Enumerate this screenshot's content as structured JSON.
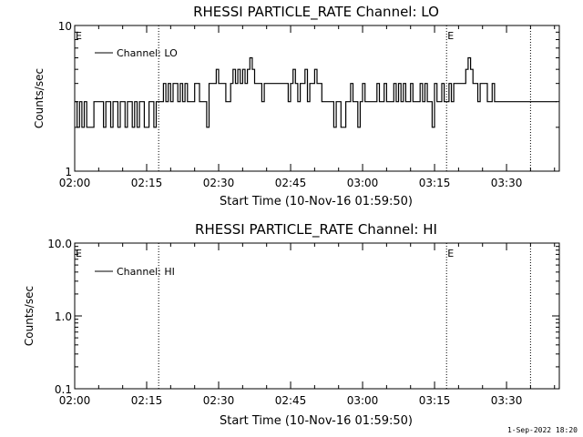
{
  "footer_timestamp": "1-Sep-2022 18:20",
  "chart_data": [
    {
      "type": "line",
      "title": "RHESSI PARTICLE_RATE Channel: LO",
      "xlabel": "Start Time (10-Nov-16 01:59:50)",
      "ylabel": "Counts/sec",
      "yscale": "log",
      "ylim": [
        1,
        10
      ],
      "ytick_labels": [
        "1",
        "10"
      ],
      "xlim_minutes": [
        0,
        101
      ],
      "xtick_labels": [
        "02:00",
        "02:15",
        "02:30",
        "02:45",
        "03:00",
        "03:15",
        "03:30"
      ],
      "legend": {
        "placement": "top-left",
        "label": "Channel: LO"
      },
      "vlines_time": [
        "02:17.5",
        "03:17.5",
        "03:35"
      ],
      "markers": [
        {
          "label": "E",
          "time": "02:00"
        },
        {
          "label": "E",
          "time": "03:17.5"
        }
      ],
      "series": [
        {
          "name": "Channel: LO",
          "x_minutes": [
            0,
            0.5,
            1,
            1.5,
            2,
            2.5,
            3,
            3.5,
            4,
            4.5,
            5,
            5.5,
            6,
            6.5,
            7,
            7.5,
            8,
            8.5,
            9,
            9.5,
            10,
            10.5,
            11,
            11.5,
            12,
            12.5,
            13,
            13.5,
            14,
            14.5,
            15,
            15.5,
            16,
            16.5,
            17,
            17.5,
            18,
            18.5,
            19,
            19.5,
            20,
            20.5,
            21,
            21.5,
            22,
            22.5,
            23,
            23.5,
            24,
            24.5,
            25,
            25.5,
            26,
            26.5,
            27,
            27.5,
            28,
            28.5,
            29,
            29.5,
            30,
            30.5,
            31,
            31.5,
            32,
            32.5,
            33,
            33.5,
            34,
            34.5,
            35,
            35.5,
            36,
            36.5,
            37,
            37.5,
            38,
            38.5,
            39,
            39.5,
            40,
            40.5,
            41,
            41.5,
            42,
            42.5,
            43,
            43.5,
            44,
            44.5,
            45,
            45.5,
            46,
            46.5,
            47,
            47.5,
            48,
            48.5,
            49,
            49.5,
            50,
            50.5,
            51,
            51.5,
            52,
            52.5,
            53,
            53.5,
            54,
            54.5,
            55,
            55.5,
            56,
            56.5,
            57,
            57.5,
            58,
            58.5,
            59,
            59.5,
            60,
            60.5,
            61,
            61.5,
            62,
            62.5,
            63,
            63.5,
            64,
            64.5,
            65,
            65.5,
            66,
            66.5,
            67,
            67.5,
            68,
            68.5,
            69,
            69.5,
            70,
            70.5,
            71,
            71.5,
            72,
            72.5,
            73,
            73.5,
            74,
            74.5,
            75,
            75.5,
            76,
            76.5,
            77,
            77.5,
            78,
            78.5,
            79,
            79.5,
            80,
            80.5,
            81,
            81.5,
            82,
            82.5,
            83,
            83.5,
            84,
            84.5,
            85,
            85.5,
            86,
            86.5,
            87,
            87.5,
            88,
            88.5,
            89,
            89.5,
            90,
            90.5,
            91,
            91.5,
            92,
            92.5,
            93,
            93.5,
            94,
            94.5,
            95,
            95.5,
            96,
            96.5,
            97,
            97.5,
            98,
            98.5,
            99,
            99.5,
            100
          ],
          "values": [
            3,
            2,
            3,
            2,
            3,
            2,
            2,
            2,
            3,
            3,
            3,
            3,
            2,
            3,
            3,
            2,
            3,
            3,
            2,
            3,
            3,
            2,
            3,
            3,
            2,
            3,
            2,
            3,
            3,
            2,
            2,
            3,
            3,
            2,
            3,
            3,
            3,
            4,
            3,
            4,
            3,
            4,
            4,
            3,
            4,
            3,
            4,
            3,
            3,
            3,
            4,
            4,
            3,
            3,
            3,
            2,
            4,
            4,
            4,
            5,
            4,
            4,
            4,
            3,
            3,
            4,
            5,
            4,
            5,
            4,
            5,
            4,
            5,
            6,
            5,
            4,
            4,
            4,
            3,
            4,
            4,
            4,
            4,
            4,
            4,
            4,
            4,
            4,
            4,
            3,
            4,
            5,
            4,
            3,
            4,
            4,
            5,
            3,
            4,
            4,
            5,
            4,
            4,
            3,
            3,
            3,
            3,
            3,
            2,
            3,
            3,
            2,
            2,
            3,
            3,
            4,
            3,
            3,
            2,
            3,
            4,
            3,
            3,
            3,
            3,
            3,
            4,
            3,
            3,
            4,
            3,
            3,
            3,
            4,
            3,
            4,
            3,
            4,
            3,
            3,
            4,
            3,
            3,
            3,
            4,
            3,
            4,
            3,
            3,
            2,
            4,
            3,
            3,
            4,
            3,
            3,
            4,
            3,
            4,
            4,
            4,
            4,
            4,
            5,
            6,
            5,
            4,
            4,
            3,
            4,
            4,
            4,
            3,
            3,
            4,
            3,
            3,
            3,
            3,
            3,
            3,
            3,
            3,
            3,
            3,
            3,
            3,
            3,
            3,
            3,
            3,
            3,
            3,
            3,
            3,
            3,
            3,
            3,
            3,
            3,
            3
          ]
        }
      ]
    },
    {
      "type": "line",
      "title": "RHESSI PARTICLE_RATE Channel: HI",
      "xlabel": "Start Time (10-Nov-16 01:59:50)",
      "ylabel": "Counts/sec",
      "yscale": "log",
      "ylim": [
        0.1,
        10
      ],
      "ytick_labels": [
        "0.1",
        "1.0",
        "10.0"
      ],
      "xlim_minutes": [
        0,
        101
      ],
      "xtick_labels": [
        "02:00",
        "02:15",
        "02:30",
        "02:45",
        "03:00",
        "03:15",
        "03:30"
      ],
      "legend": {
        "placement": "top-left",
        "label": "Channel: HI"
      },
      "vlines_time": [
        "02:17.5",
        "03:17.5",
        "03:35"
      ],
      "markers": [
        {
          "label": "E",
          "time": "02:00"
        },
        {
          "label": "E",
          "time": "03:17.5"
        }
      ],
      "series": [
        {
          "name": "Channel: HI",
          "x_minutes": [],
          "values": []
        }
      ]
    }
  ]
}
